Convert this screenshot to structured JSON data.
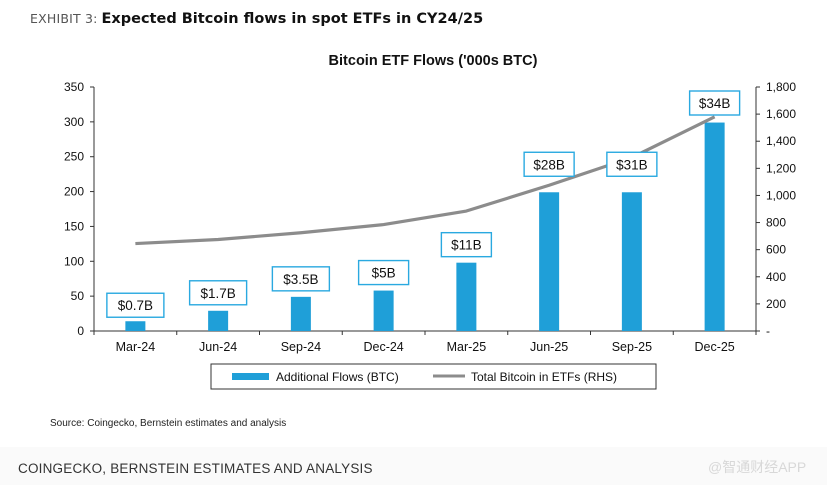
{
  "exhibit": {
    "label": "EXHIBIT 3:",
    "title": "Expected Bitcoin flows in spot ETFs in CY24/25"
  },
  "source_note": "Source: Coingecko, Bernstein estimates and analysis",
  "footer_caption": "COINGECKO, BERNSTEIN ESTIMATES AND ANALYSIS",
  "watermark": "@智通财经APP",
  "colors": {
    "bar": "#1f9fd8",
    "line": "#8c8c8c",
    "callout_border": "#2aa9e0"
  },
  "chart_data": {
    "type": "bar",
    "title": "Bitcoin ETF Flows ('000s BTC)",
    "categories": [
      "Mar-24",
      "Jun-24",
      "Sep-24",
      "Dec-24",
      "Mar-25",
      "Jun-25",
      "Sep-25",
      "Dec-25"
    ],
    "series": [
      {
        "name": "Additional Flows (BTC)",
        "type": "bar",
        "axis": "left",
        "values": [
          14,
          29,
          49,
          58,
          98,
          199,
          199,
          299
        ]
      },
      {
        "name": "Total Bitcoin in ETFs (RHS)",
        "type": "line",
        "axis": "right",
        "values": [
          645,
          675,
          725,
          785,
          885,
          1075,
          1280,
          1580
        ]
      }
    ],
    "data_labels": [
      "$0.7B",
      "$1.7B",
      "$3.5B",
      "$5B",
      "$11B",
      "$28B",
      "$31B",
      "$34B"
    ],
    "y_left": {
      "lim": [
        0,
        350
      ],
      "ticks": [
        "0",
        "50",
        "100",
        "150",
        "200",
        "250",
        "300",
        "350"
      ]
    },
    "y_right": {
      "lim": [
        0,
        1800
      ],
      "ticks": [
        "-",
        "200",
        "400",
        "600",
        "800",
        "1,000",
        "1,200",
        "1,400",
        "1,600",
        "1,800"
      ]
    },
    "grid": false,
    "legend": "bottom"
  }
}
